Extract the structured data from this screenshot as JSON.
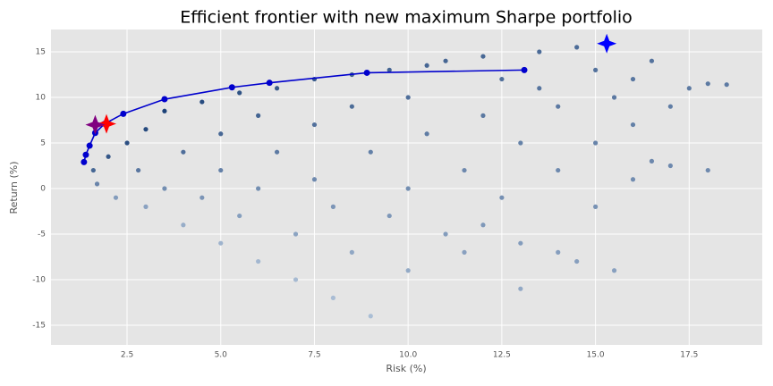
{
  "chart_data": {
    "type": "scatter",
    "title": "Efficient frontier with new maximum Sharpe portfolio",
    "x_label": "Risk (%)",
    "y_label": "Return (%)",
    "xlim": [
      0.47,
      19.45
    ],
    "ylim": [
      -17.16,
      17.45
    ],
    "xticks": [
      2.5,
      {
        "value": 5,
        "label": "5.0"
      },
      7.5,
      {
        "value": 10,
        "label": "10.0"
      },
      12.5,
      {
        "value": 15,
        "label": "15.0"
      },
      17.5
    ],
    "yticks": [
      -15,
      -10,
      -5,
      0,
      5,
      10,
      15
    ],
    "grid": true,
    "series": [
      {
        "marker": "cloud",
        "colors": [
          "#deebf7",
          "#08306b"
        ],
        "x": [
          1.6,
          1.7,
          2,
          2.2,
          2.5,
          2.8,
          3,
          3,
          3.5,
          3.5,
          4,
          4,
          4.5,
          4.5,
          5,
          5,
          5,
          5.5,
          5.5,
          6,
          6,
          6,
          6.5,
          6.5,
          7,
          7,
          7.5,
          7.5,
          7.5,
          8,
          8,
          8.5,
          8.5,
          8.5,
          9,
          9,
          9.5,
          9.5,
          10,
          10,
          10,
          10.5,
          10.5,
          11,
          11,
          11.5,
          11.5,
          12,
          12,
          12,
          12.5,
          12.5,
          13,
          13,
          13.5,
          13.5,
          14,
          14,
          14,
          14.5,
          14.5,
          15,
          15,
          15,
          15.5,
          15.5,
          16,
          16,
          16.5,
          16.5,
          17,
          17,
          17.5,
          18,
          18.5,
          18,
          16,
          13
        ],
        "values": [
          2,
          0.5,
          3.5,
          -1,
          5,
          2,
          -2,
          6.5,
          0,
          8.5,
          4,
          -4,
          9.5,
          -1,
          6,
          2,
          -6,
          10.5,
          -3,
          8,
          0,
          -8,
          11,
          4,
          -5,
          -10,
          12,
          7,
          1,
          -2,
          -12,
          12.5,
          9,
          -7,
          4,
          -14,
          13,
          -3,
          10,
          0,
          -9,
          13.5,
          6,
          -5,
          14,
          2,
          -7,
          14.5,
          8,
          -4,
          12,
          -1,
          5,
          -6,
          15,
          11,
          9,
          2,
          -7,
          15.5,
          -8,
          13,
          5,
          -2,
          10,
          -9,
          12,
          7,
          14,
          3,
          9,
          2.5,
          11,
          11.5,
          11.4,
          2,
          1,
          -11
        ]
      },
      {
        "marker": "line",
        "color": "#0000cd",
        "x": [
          1.35,
          1.4,
          1.5,
          1.65,
          1.9,
          2.4,
          3.5,
          5.3,
          6.3,
          8.9,
          13.1
        ],
        "values": [
          2.9,
          3.7,
          4.7,
          6.1,
          7.1,
          8.2,
          9.8,
          11.1,
          11.6,
          12.7,
          13.0
        ]
      },
      {
        "marker": "star",
        "color": "#ff0000",
        "x": [
          1.95
        ],
        "values": [
          7.1
        ]
      },
      {
        "marker": "star",
        "color": "#800080",
        "x": [
          1.65
        ],
        "values": [
          7.0
        ]
      },
      {
        "marker": "star",
        "color": "#0000ff",
        "x": [
          15.3
        ],
        "values": [
          15.9
        ]
      }
    ]
  }
}
